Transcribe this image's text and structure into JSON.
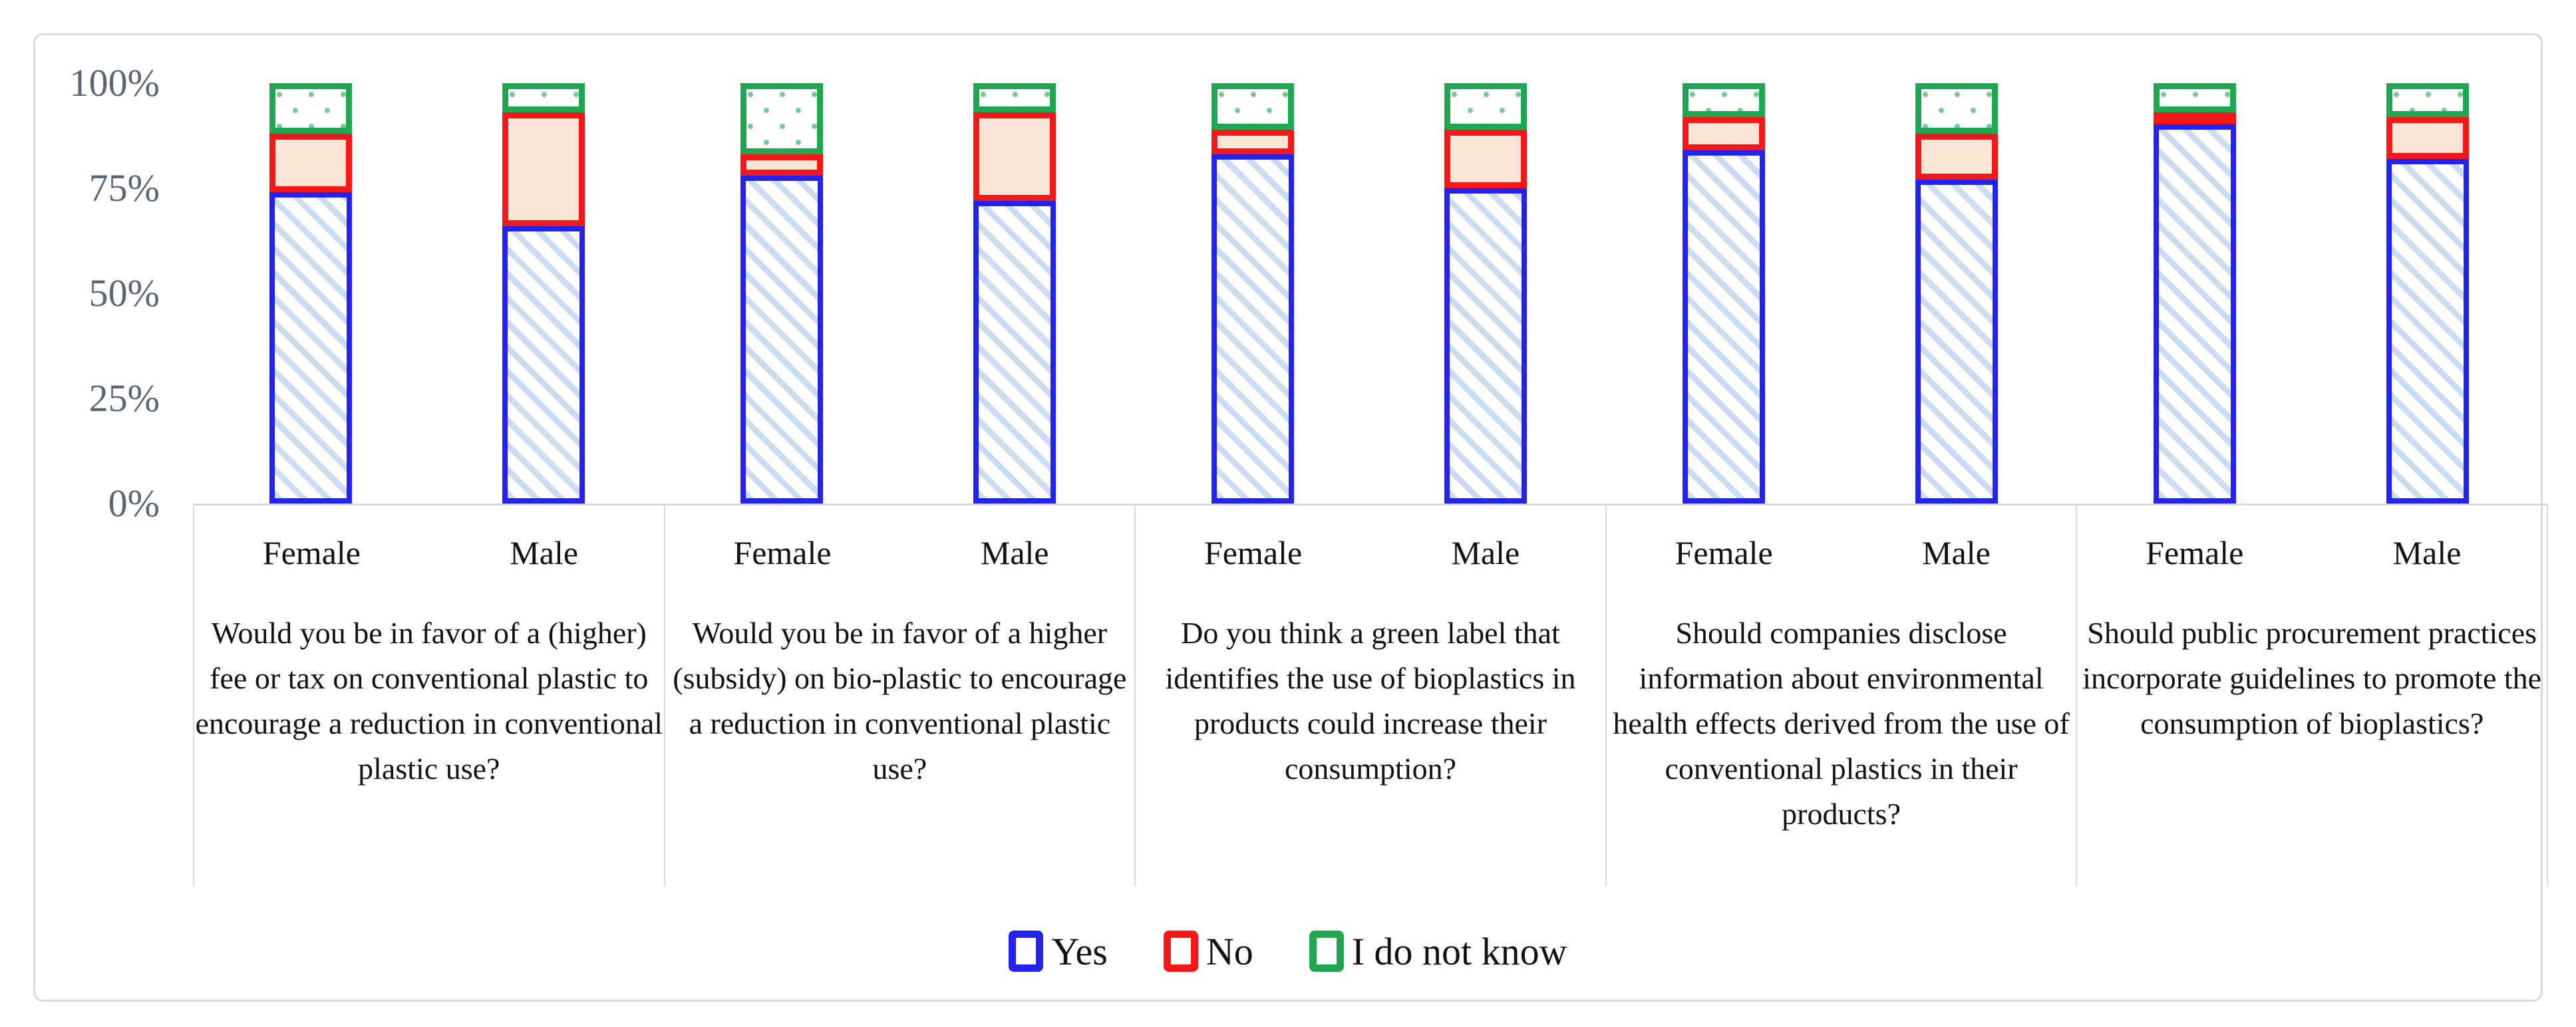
{
  "chart_data": {
    "type": "bar",
    "subtype": "stacked-100-percent",
    "title": "",
    "xlabel": "",
    "ylabel": "",
    "ylim": [
      0,
      100
    ],
    "grid": false,
    "y_ticks": [
      "100%",
      "75%",
      "50%",
      "25%",
      "0%"
    ],
    "legend_position": "bottom-center",
    "series_names": [
      "Yes",
      "No",
      "I do not know"
    ],
    "legend": [
      {
        "label": "Yes",
        "color": "#2323f0"
      },
      {
        "label": "No",
        "color": "#f51818"
      },
      {
        "label": "I do not know",
        "color": "#1fa650"
      }
    ],
    "groups": [
      {
        "question": "Would you be in favor of a (higher) fee or tax on conventional plastic to encourage a reduction in conventional plastic use?",
        "bars": [
          {
            "category": "Female",
            "yes": 74,
            "no": 14,
            "idk": 12
          },
          {
            "category": "Male",
            "yes": 66,
            "no": 27,
            "idk": 7
          }
        ]
      },
      {
        "question": "Would you be in favor of a higher (subsidy) on bio-plastic to encourage a reduction in conventional plastic use?",
        "bars": [
          {
            "category": "Female",
            "yes": 78,
            "no": 5,
            "idk": 17
          },
          {
            "category": "Male",
            "yes": 72,
            "no": 21,
            "idk": 7
          }
        ]
      },
      {
        "question": "Do you think a green label that identifies the use of bioplastics in products could increase their consumption?",
        "bars": [
          {
            "category": "Female",
            "yes": 83,
            "no": 6,
            "idk": 11
          },
          {
            "category": "Male",
            "yes": 75,
            "no": 14,
            "idk": 11
          }
        ]
      },
      {
        "question": "Should companies disclose information about environmental health effects derived from the use of conventional plastics in their products?",
        "bars": [
          {
            "category": "Female",
            "yes": 84,
            "no": 8,
            "idk": 8
          },
          {
            "category": "Male",
            "yes": 77,
            "no": 11,
            "idk": 12
          }
        ]
      },
      {
        "question": "Should public procurement practices incorporate guidelines to promote the consumption of bioplastics?",
        "bars": [
          {
            "category": "Female",
            "yes": 91,
            "no": 2,
            "idk": 7
          },
          {
            "category": "Male",
            "yes": 82,
            "no": 10,
            "idk": 8
          }
        ]
      }
    ],
    "colors": {
      "yes_border": "#2323f0",
      "yes_hatch": "#cadcf2",
      "no_border": "#f51818",
      "no_fill": "#fae4d5",
      "idk_border": "#1fa650",
      "idk_dots": "#7cc795",
      "axis_gray": "#d9d9d9",
      "tick_text": "#5b6574",
      "text": "#121212"
    }
  }
}
